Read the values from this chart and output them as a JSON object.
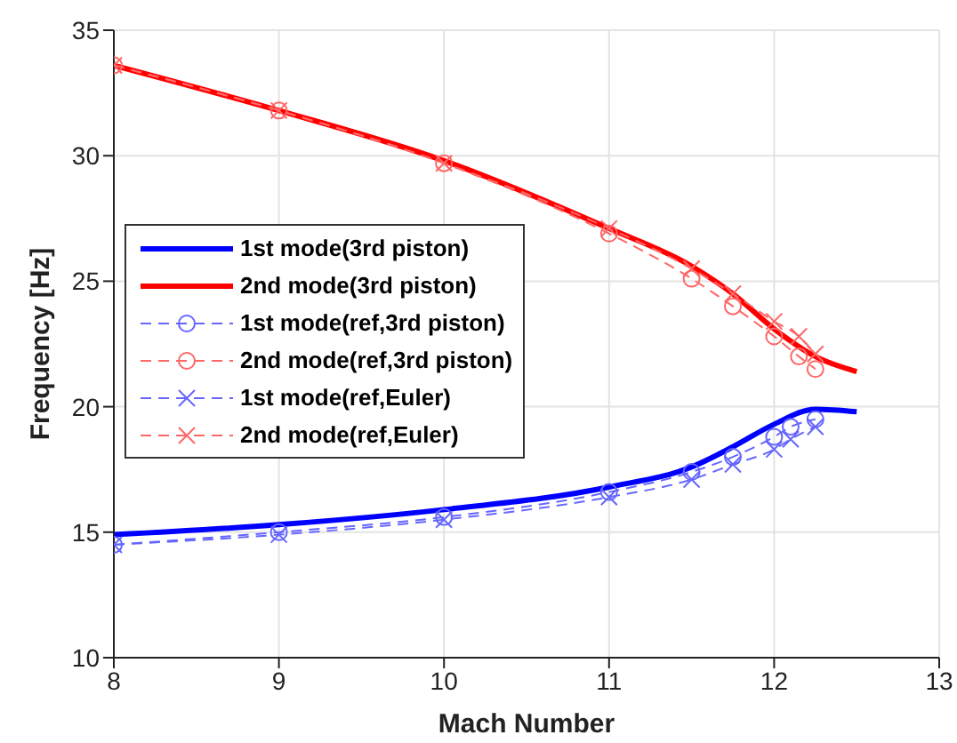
{
  "chart_data": {
    "type": "line",
    "xlabel": "Mach Number",
    "ylabel": "Frequency [Hz]",
    "xlim": [
      8,
      13
    ],
    "xticks": [
      8,
      9,
      10,
      11,
      12,
      13
    ],
    "ylim": [
      10,
      35
    ],
    "yticks": [
      10,
      15,
      20,
      25,
      30,
      35
    ],
    "grid": true,
    "legend": "left",
    "series": [
      {
        "name": "1st mode(3rd piston)",
        "color": "#0000ff",
        "marker": "none",
        "line_style": "solid",
        "x": [
          8,
          9,
          10,
          11,
          11.5,
          11.75,
          12,
          12.25,
          12.5
        ],
        "values": [
          14.9,
          15.3,
          15.9,
          16.8,
          17.6,
          18.4,
          19.3,
          19.9,
          19.8
        ]
      },
      {
        "name": "2nd mode(3rd piston)",
        "color": "#ff0000",
        "marker": "none",
        "line_style": "solid",
        "x": [
          8,
          9,
          10,
          11,
          11.5,
          11.75,
          12,
          12.25,
          12.5
        ],
        "values": [
          33.6,
          31.8,
          29.8,
          27.1,
          25.6,
          24.5,
          23.1,
          22.0,
          21.4
        ]
      },
      {
        "name": "1st mode(ref,3rd piston)",
        "color": "#6666ff",
        "marker": "circle",
        "line_style": "dashed",
        "x": [
          8,
          9,
          10,
          11,
          11.5,
          11.75,
          12,
          12.1,
          12.25
        ],
        "values": [
          14.5,
          15.0,
          15.6,
          16.6,
          17.4,
          18.0,
          18.8,
          19.2,
          19.5
        ]
      },
      {
        "name": "2nd mode(ref,3rd piston)",
        "color": "#ff6666",
        "marker": "circle",
        "line_style": "dashed",
        "x": [
          8,
          9,
          10,
          11,
          11.5,
          11.75,
          12,
          12.15,
          12.25
        ],
        "values": [
          33.6,
          31.8,
          29.7,
          26.9,
          25.1,
          24.0,
          22.8,
          22.0,
          21.5
        ]
      },
      {
        "name": "1st mode(ref,Euler)",
        "color": "#6666ff",
        "marker": "cross",
        "line_style": "dashed",
        "x": [
          8,
          9,
          10,
          11,
          11.5,
          11.75,
          12,
          12.1,
          12.25
        ],
        "values": [
          14.5,
          14.9,
          15.5,
          16.4,
          17.1,
          17.7,
          18.3,
          18.7,
          19.2
        ]
      },
      {
        "name": "2nd mode(ref,Euler)",
        "color": "#ff6666",
        "marker": "cross",
        "line_style": "dashed",
        "x": [
          8,
          9,
          10,
          11,
          11.5,
          11.75,
          12,
          12.15,
          12.25
        ],
        "values": [
          33.6,
          31.8,
          29.7,
          27.1,
          25.5,
          24.5,
          23.4,
          22.8,
          22.1
        ]
      }
    ]
  }
}
